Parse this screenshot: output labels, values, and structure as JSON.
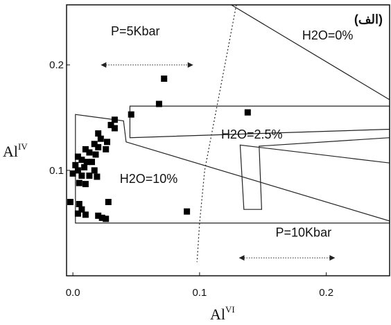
{
  "chart_data": {
    "type": "scatter",
    "panel_label": "(الف)",
    "xlabel": {
      "base": "Al",
      "sup": "VI"
    },
    "ylabel": {
      "base": "Al",
      "sup": "IV"
    },
    "xlim": [
      -0.005,
      0.25
    ],
    "ylim": [
      0.0,
      0.257
    ],
    "x_ticks": [
      {
        "value": 0.0,
        "label": "0.0"
      },
      {
        "value": 0.1,
        "label": "0.1"
      },
      {
        "value": 0.2,
        "label": "0.2"
      }
    ],
    "y_ticks": [
      {
        "value": 0.1,
        "label": "0.1"
      },
      {
        "value": 0.2,
        "label": "0.2"
      }
    ],
    "grid": false,
    "points": [
      {
        "x": 0.072,
        "y": 0.187
      },
      {
        "x": 0.068,
        "y": 0.163
      },
      {
        "x": 0.046,
        "y": 0.153
      },
      {
        "x": 0.138,
        "y": 0.155
      },
      {
        "x": 0.033,
        "y": 0.148
      },
      {
        "x": 0.03,
        "y": 0.143
      },
      {
        "x": 0.033,
        "y": 0.14
      },
      {
        "x": 0.02,
        "y": 0.135
      },
      {
        "x": 0.022,
        "y": 0.13
      },
      {
        "x": 0.027,
        "y": 0.127
      },
      {
        "x": 0.017,
        "y": 0.125
      },
      {
        "x": 0.02,
        "y": 0.122
      },
      {
        "x": 0.026,
        "y": 0.12
      },
      {
        "x": 0.01,
        "y": 0.12
      },
      {
        "x": 0.013,
        "y": 0.117
      },
      {
        "x": 0.018,
        "y": 0.115
      },
      {
        "x": 0.004,
        "y": 0.113
      },
      {
        "x": 0.007,
        "y": 0.11
      },
      {
        "x": 0.011,
        "y": 0.108
      },
      {
        "x": 0.015,
        "y": 0.108
      },
      {
        "x": 0.002,
        "y": 0.105
      },
      {
        "x": 0.009,
        "y": 0.103
      },
      {
        "x": 0.004,
        "y": 0.1
      },
      {
        "x": 0.017,
        "y": 0.1
      },
      {
        "x": 0.0,
        "y": 0.097
      },
      {
        "x": 0.007,
        "y": 0.095
      },
      {
        "x": 0.013,
        "y": 0.095
      },
      {
        "x": 0.019,
        "y": 0.094
      },
      {
        "x": 0.005,
        "y": 0.088
      },
      {
        "x": 0.01,
        "y": 0.087
      },
      {
        "x": -0.002,
        "y": 0.07
      },
      {
        "x": 0.005,
        "y": 0.068
      },
      {
        "x": 0.007,
        "y": 0.063
      },
      {
        "x": 0.004,
        "y": 0.059
      },
      {
        "x": 0.01,
        "y": 0.058
      },
      {
        "x": 0.02,
        "y": 0.057
      },
      {
        "x": 0.023,
        "y": 0.055
      },
      {
        "x": 0.026,
        "y": 0.054
      },
      {
        "x": 0.028,
        "y": 0.07
      },
      {
        "x": 0.09,
        "y": 0.061
      }
    ],
    "regions": [
      {
        "label": "H2O=0%",
        "vertices": [
          [
            0.125,
            0.257
          ],
          [
            0.25,
            0.257
          ],
          [
            0.25,
            0.167
          ]
        ]
      },
      {
        "label": "H2O=2.5%",
        "vertices": [
          [
            0.045,
            0.161
          ],
          [
            0.25,
            0.161
          ],
          [
            0.25,
            0.131
          ],
          [
            0.147,
            0.123
          ],
          [
            0.149,
            0.063
          ],
          [
            0.135,
            0.063
          ],
          [
            0.132,
            0.124
          ],
          [
            0.25,
            0.107
          ],
          [
            0.25,
            0.139
          ],
          [
            0.045,
            0.131
          ]
        ]
      },
      {
        "label": "H2O=10%",
        "vertices": [
          [
            0.002,
            0.153
          ],
          [
            0.04,
            0.147
          ],
          [
            0.042,
            0.127
          ],
          [
            0.25,
            0.052
          ],
          [
            0.25,
            0.05
          ],
          [
            0.01,
            0.05
          ],
          [
            0.002,
            0.05
          ]
        ]
      }
    ],
    "isobar_curve": [
      [
        0.129,
        0.257
      ],
      [
        0.12,
        0.2
      ],
      [
        0.112,
        0.15
      ],
      [
        0.104,
        0.1
      ],
      [
        0.1,
        0.05
      ],
      [
        0.098,
        0.013
      ]
    ],
    "annotations": [
      {
        "text": "P=5Kbar",
        "type": "label",
        "x": 0.03,
        "y": 0.228
      },
      {
        "text": "",
        "type": "double-arrow",
        "x1": 0.022,
        "x2": 0.095,
        "y": 0.2
      },
      {
        "text": "P=10Kbar",
        "type": "label",
        "x": 0.16,
        "y": 0.037
      },
      {
        "text": "",
        "type": "double-arrow",
        "x1": 0.131,
        "x2": 0.207,
        "y": 0.017
      },
      {
        "text": "H2O=0%",
        "type": "label",
        "x": 0.181,
        "y": 0.224
      },
      {
        "text": "H2O=2.5%",
        "type": "label",
        "x": 0.117,
        "y": 0.13
      },
      {
        "text": "H2O=10%",
        "type": "label",
        "x": 0.037,
        "y": 0.088
      }
    ]
  }
}
